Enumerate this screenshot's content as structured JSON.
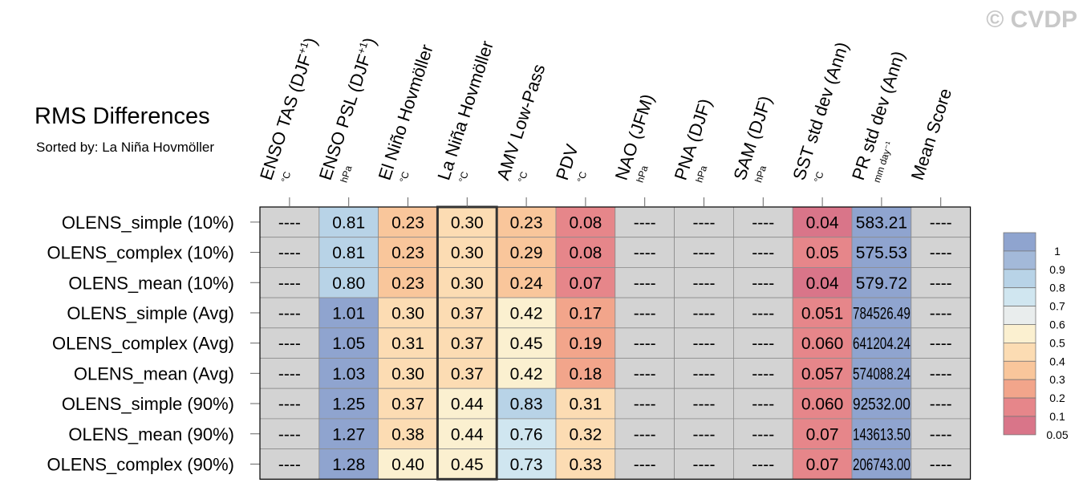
{
  "title": "RMS Differences",
  "subtitle": "Sorted by: La Niña Hovmöller",
  "copyright": "© CVDP",
  "colors": {
    "na": "#d3d3d3",
    "grid": "#8c8c8c",
    "frame": "#000000",
    "highlight_frame": "#333333"
  },
  "chart_data": {
    "type": "heatmap",
    "sorted_by": "La Niña Hovmöller",
    "highlight_column": 3,
    "columns": [
      {
        "label": "ENSO TAS (DJF",
        "sup": "+1",
        "close": ")",
        "unit": "°C"
      },
      {
        "label": "ENSO PSL (DJF",
        "sup": "+1",
        "close": ")",
        "unit": "hPa"
      },
      {
        "label": "El Niño Hovmöller",
        "sup": "",
        "close": "",
        "unit": "°C"
      },
      {
        "label": "La Niña Hovmöller",
        "sup": "",
        "close": "",
        "unit": "°C"
      },
      {
        "label": "AMV Low-Pass",
        "sup": "",
        "close": "",
        "unit": "°C"
      },
      {
        "label": "PDV",
        "sup": "",
        "close": "",
        "unit": "°C"
      },
      {
        "label": "NAO (JFM)",
        "sup": "",
        "close": "",
        "unit": "hPa"
      },
      {
        "label": "PNA (DJF)",
        "sup": "",
        "close": "",
        "unit": "hPa"
      },
      {
        "label": "SAM (DJF)",
        "sup": "",
        "close": "",
        "unit": "hPa"
      },
      {
        "label": "SST std dev (Ann)",
        "sup": "",
        "close": "",
        "unit": "°C"
      },
      {
        "label": "PR std dev (Ann)",
        "sup": "",
        "close": "",
        "unit": "mm day⁻¹"
      },
      {
        "label": "Mean Score",
        "sup": "",
        "close": "",
        "unit": ""
      }
    ],
    "rows": [
      {
        "name": "OLENS_simple (10%)",
        "values": [
          "----",
          "0.81",
          "0.23",
          "0.30",
          "0.23",
          "0.08",
          "----",
          "----",
          "----",
          "0.04",
          "583.21",
          "----"
        ]
      },
      {
        "name": "OLENS_complex (10%)",
        "values": [
          "----",
          "0.81",
          "0.23",
          "0.30",
          "0.29",
          "0.08",
          "----",
          "----",
          "----",
          "0.05",
          "575.53",
          "----"
        ]
      },
      {
        "name": "OLENS_mean (10%)",
        "values": [
          "----",
          "0.80",
          "0.23",
          "0.30",
          "0.24",
          "0.07",
          "----",
          "----",
          "----",
          "0.04",
          "579.72",
          "----"
        ]
      },
      {
        "name": "OLENS_simple (Avg)",
        "values": [
          "----",
          "1.01",
          "0.30",
          "0.37",
          "0.42",
          "0.17",
          "----",
          "----",
          "----",
          "0.051",
          "784526.49",
          "----"
        ]
      },
      {
        "name": "OLENS_complex (Avg)",
        "values": [
          "----",
          "1.05",
          "0.31",
          "0.37",
          "0.45",
          "0.19",
          "----",
          "----",
          "----",
          "0.060",
          "641204.24",
          "----"
        ]
      },
      {
        "name": "OLENS_mean (Avg)",
        "values": [
          "----",
          "1.03",
          "0.30",
          "0.37",
          "0.42",
          "0.18",
          "----",
          "----",
          "----",
          "0.057",
          "574088.24",
          "----"
        ]
      },
      {
        "name": "OLENS_simple (90%)",
        "values": [
          "----",
          "1.25",
          "0.37",
          "0.44",
          "0.83",
          "0.31",
          "----",
          "----",
          "----",
          "0.060",
          "92532.00",
          "----"
        ]
      },
      {
        "name": "OLENS_mean (90%)",
        "values": [
          "----",
          "1.27",
          "0.38",
          "0.44",
          "0.76",
          "0.32",
          "----",
          "----",
          "----",
          "0.07",
          "143613.50",
          "----"
        ]
      },
      {
        "name": "OLENS_complex (90%)",
        "values": [
          "----",
          "1.28",
          "0.40",
          "0.45",
          "0.73",
          "0.33",
          "----",
          "----",
          "----",
          "0.07",
          "206743.00",
          "----"
        ]
      }
    ],
    "colorbar": {
      "levels": [
        "1",
        "0.9",
        "0.8",
        "0.7",
        "0.6",
        "0.5",
        "0.4",
        "0.3",
        "0.2",
        "0.1",
        "0.05"
      ],
      "colors": [
        "#8fa4cf",
        "#a3b9d9",
        "#b8d3e7",
        "#d0e6f0",
        "#e9eded",
        "#fbf0d0",
        "#fcdcb3",
        "#f9c69b",
        "#f2a58b",
        "#e6868a",
        "#d97589"
      ],
      "bins": [
        {
          "min": 1.0,
          "color": "#8fa4cf"
        },
        {
          "min": 0.9,
          "color": "#a3b9d9"
        },
        {
          "min": 0.8,
          "color": "#b8d3e7"
        },
        {
          "min": 0.7,
          "color": "#d0e6f0"
        },
        {
          "min": 0.6,
          "color": "#e9eded"
        },
        {
          "min": 0.5,
          "color": "#f4efe0"
        },
        {
          "min": 0.4,
          "color": "#fbf0d0"
        },
        {
          "min": 0.3,
          "color": "#fcdcb3"
        },
        {
          "min": 0.2,
          "color": "#f9c69b"
        },
        {
          "min": 0.1,
          "color": "#f2a58b"
        },
        {
          "min": 0.05,
          "color": "#e6868a"
        },
        {
          "min": 0.0,
          "color": "#d97589"
        }
      ]
    }
  }
}
